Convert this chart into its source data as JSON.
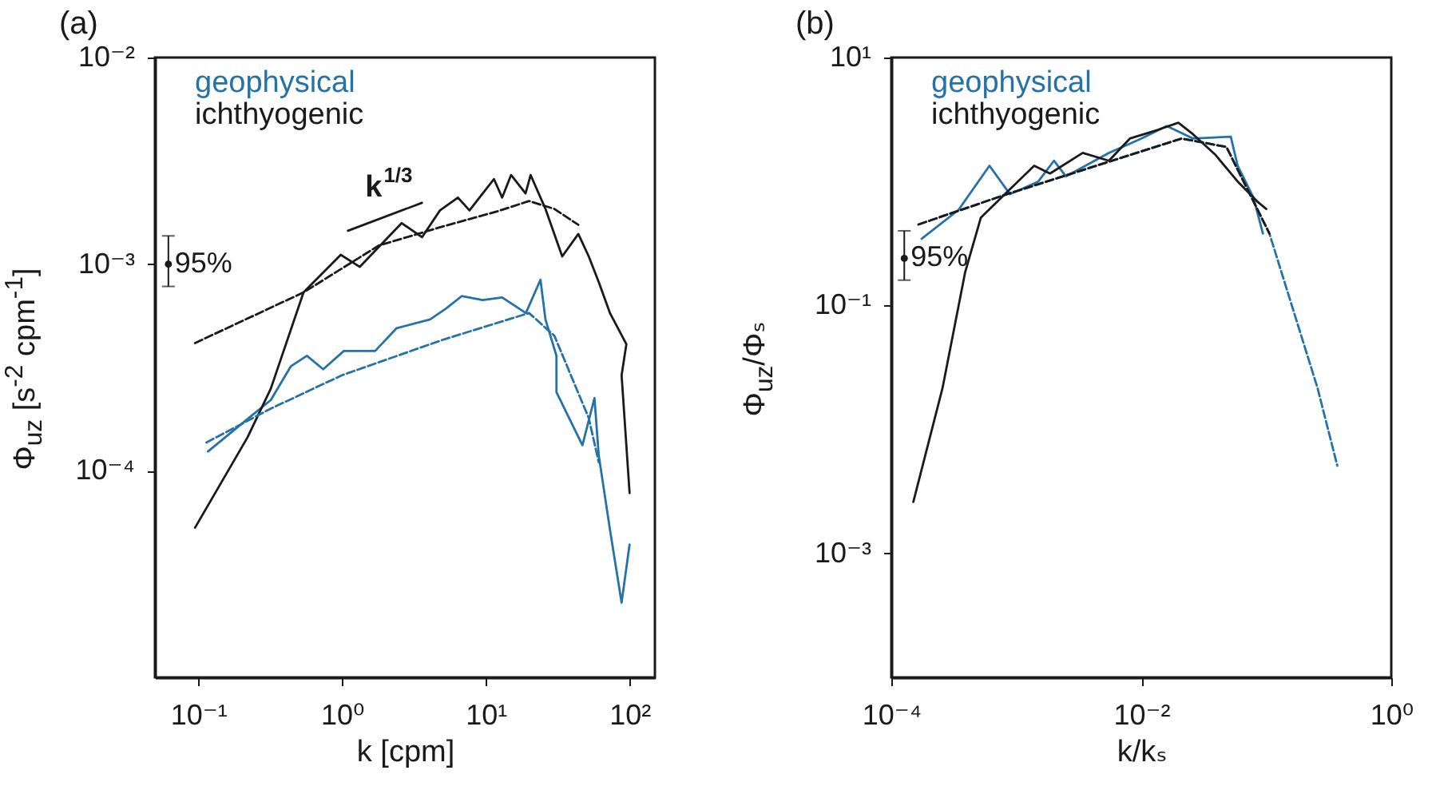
{
  "chart_data": [
    {
      "type": "line",
      "title": "(a)",
      "xlabel": "k [cpm]",
      "ylabel": "Φ$_{uz}$ [s$^{-2}$ cpm$^{-1}$]",
      "log": "xy",
      "legend": "top left",
      "xlim": [
        0.05,
        150
      ],
      "ylim": [
        1e-05,
        0.01
      ],
      "xticks": [
        {
          "value": 0.1,
          "label": "10⁻¹"
        },
        {
          "value": 1,
          "label": "10⁰"
        },
        {
          "value": 10,
          "label": "10¹"
        },
        {
          "value": 100,
          "label": "10²"
        }
      ],
      "yticks": [
        {
          "value": 0.0001,
          "label": "10⁻⁴"
        },
        {
          "value": 0.001,
          "label": "10⁻³"
        },
        {
          "value": 0.01,
          "label": "10⁻²"
        }
      ],
      "annotations": [
        {
          "text": "k$^{1/3}$",
          "x": 1.9,
          "y": 0.00166
        },
        {
          "text": "95%",
          "x": 0.062,
          "y": 0.001
        }
      ],
      "series": [
        {
          "name": "geophysical",
          "color": "#2472a8",
          "x": [
            0.117,
            0.22,
            0.32,
            0.44,
            0.57,
            0.74,
            1.03,
            1.7,
            2.4,
            4.1,
            5.3,
            6.8,
            9.5,
            13,
            19,
            24,
            26,
            31,
            31,
            47,
            57,
            61,
            73,
            88,
            100
          ],
          "values": [
            0.000124,
            0.000178,
            0.00022,
            0.00032,
            0.00036,
            0.00031,
            0.00038,
            0.00038,
            0.00049,
            0.00054,
            0.00061,
            0.0007,
            0.00067,
            0.00069,
            0.00058,
            0.00084,
            0.00054,
            0.00036,
            0.00024,
            0.000133,
            0.000225,
            0.000119,
            5.2e-05,
            2.3e-05,
            4.4e-05
          ]
        },
        {
          "name": "ichthyogenic",
          "color": "#1a1a1a",
          "x": [
            0.095,
            0.22,
            0.32,
            0.54,
            0.98,
            1.33,
            2.6,
            3.6,
            4.8,
            6.4,
            7.7,
            11.4,
            13,
            15,
            18.9,
            20.5,
            26,
            34,
            44,
            52,
            61,
            73,
            95,
            88,
            100
          ],
          "values": [
            5.3e-05,
            0.000145,
            0.00025,
            0.00073,
            0.00111,
            0.00097,
            0.00158,
            0.00135,
            0.00182,
            0.0021,
            0.00182,
            0.00258,
            0.0021,
            0.0027,
            0.0022,
            0.0027,
            0.00185,
            0.00109,
            0.0014,
            0.00109,
            0.00082,
            0.00058,
            0.00041,
            0.00029,
            7.8e-05
          ]
        },
        {
          "color": "#2472a8",
          "line_style": "dashed",
          "x": [
            0.114,
            0.32,
            1,
            5,
            20,
            30,
            52,
            61
          ],
          "values": [
            0.000137,
            0.0002,
            0.00029,
            0.00043,
            0.00058,
            0.00045,
            0.00018,
            0.00011
          ]
        },
        {
          "color": "#1a1a1a",
          "line_style": "dashed",
          "x": [
            0.095,
            0.54,
            1.8,
            5,
            12,
            20,
            30,
            44
          ],
          "values": [
            0.000415,
            0.00073,
            0.00123,
            0.00152,
            0.0018,
            0.00202,
            0.00185,
            0.00155
          ]
        },
        {
          "color": "#1a1a1a",
          "x": [
            1.1,
            3.6
          ],
          "values": [
            0.00145,
            0.00198
          ]
        },
        {
          "type": "scatter",
          "color": "#1a1a1a",
          "marker": "circle",
          "x": [
            0.062
          ],
          "values": [
            0.001
          ],
          "errors": [
            [
              0.00078,
              0.00137
            ]
          ]
        }
      ]
    },
    {
      "type": "line",
      "title": "(b)",
      "xlabel": "k/kₛ",
      "ylabel": "Φ$_{uz}$/Φₛ",
      "log": "xy",
      "legend": "top left",
      "xlim": [
        0.0001,
        1
      ],
      "ylim": [
        0.0001,
        10
      ],
      "xticks": [
        {
          "value": 0.0001,
          "label": "10⁻⁴"
        },
        {
          "value": 0.01,
          "label": "10⁻²"
        },
        {
          "value": 1,
          "label": "10⁰"
        }
      ],
      "yticks": [
        {
          "value": 0.001,
          "label": "10⁻³"
        },
        {
          "value": 0.1,
          "label": "10⁻¹"
        },
        {
          "value": 10,
          "label": "10¹"
        }
      ],
      "annotations": [
        {
          "text": "95%",
          "x": 0.000127,
          "y": 0.24
        }
      ],
      "series": [
        {
          "name": "geophysical",
          "color": "#2472a8",
          "x": [
            0.000175,
            0.000345,
            0.00061,
            0.00089,
            0.0015,
            0.002,
            0.0025,
            0.0055,
            0.01,
            0.016,
            0.026,
            0.052,
            0.059,
            0.079,
            0.094
          ],
          "values": [
            0.345,
            0.59,
            1.34,
            0.79,
            1.0,
            1.47,
            1.1,
            1.7,
            2.22,
            2.8,
            2.22,
            2.3,
            1.34,
            0.74,
            0.38
          ]
        },
        {
          "name": "ichthyogenic",
          "color": "#1a1a1a",
          "x": [
            0.00015,
            0.000257,
            0.00039,
            0.00052,
            0.00081,
            0.00139,
            0.00186,
            0.0034,
            0.0055,
            0.0081,
            0.0134,
            0.0198,
            0.026,
            0.039,
            0.059,
            0.086,
            0.1
          ],
          "values": [
            0.0026,
            0.0216,
            0.186,
            0.51,
            0.79,
            1.34,
            1.16,
            1.7,
            1.47,
            2.22,
            2.6,
            2.98,
            2.4,
            1.65,
            1.0,
            0.68,
            0.6
          ]
        },
        {
          "color": "#2472a8",
          "line_style": "dashed",
          "x": [
            0.000165,
            0.00084,
            0.021,
            0.048,
            0.106,
            0.257,
            0.37
          ],
          "values": [
            0.45,
            0.79,
            2.22,
            1.9,
            0.38,
            0.0216,
            0.0051
          ]
        },
        {
          "color": "#1a1a1a",
          "line_style": "dashed",
          "x": [
            0.000165,
            0.00084,
            0.021,
            0.048,
            0.106
          ],
          "values": [
            0.45,
            0.79,
            2.22,
            1.9,
            0.38
          ]
        },
        {
          "type": "scatter",
          "color": "#1a1a1a",
          "marker": "circle",
          "x": [
            0.000127
          ],
          "values": [
            0.24
          ],
          "errors": [
            [
              0.16,
              0.4
            ]
          ]
        }
      ]
    }
  ]
}
